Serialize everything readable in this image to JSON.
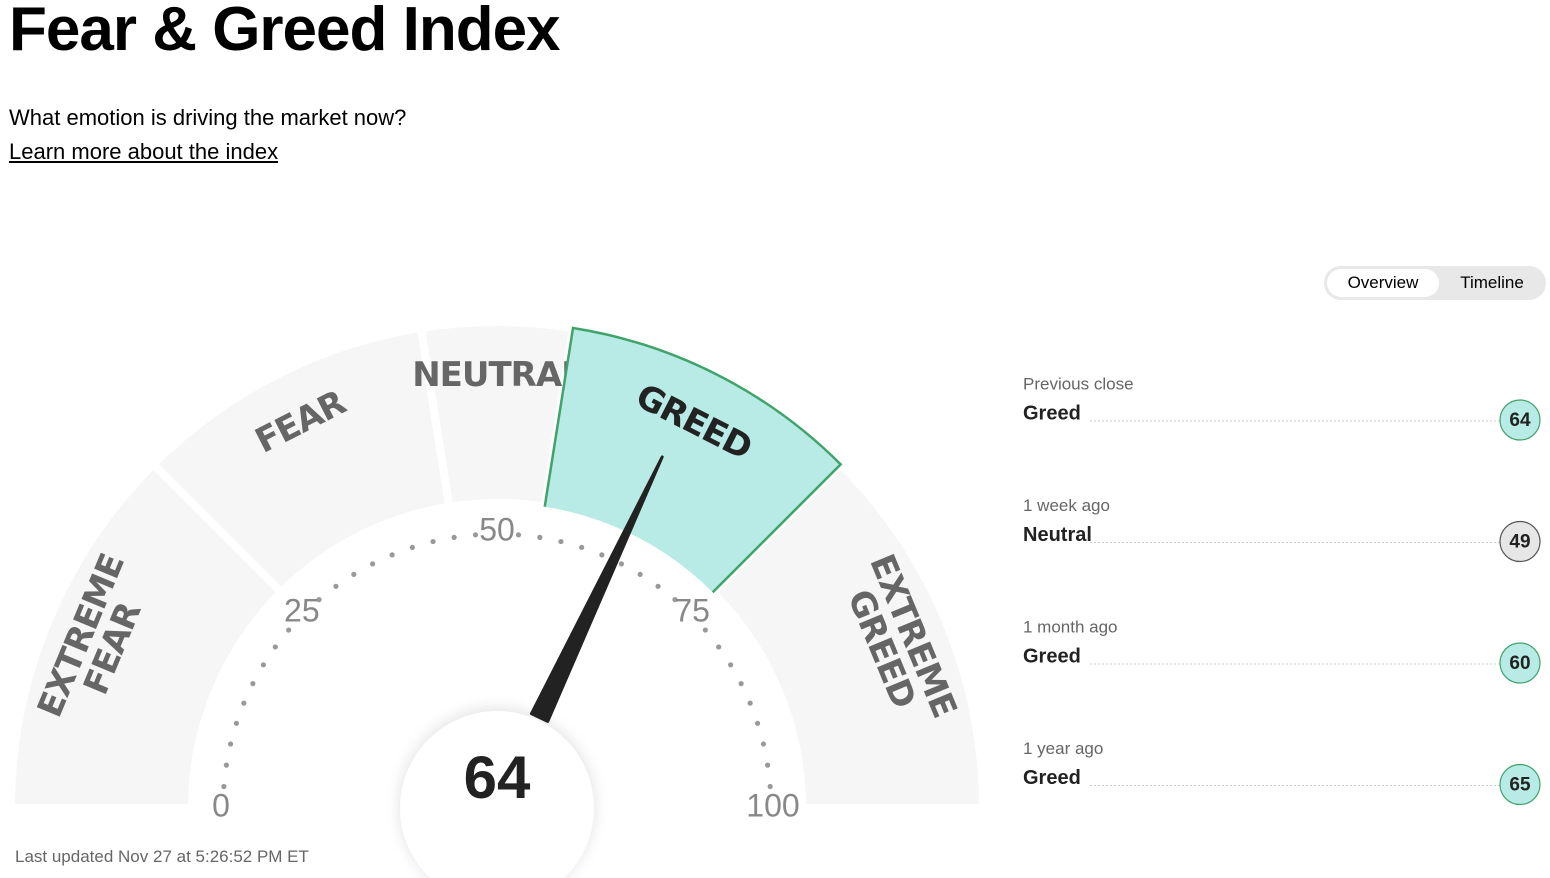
{
  "header": {
    "title": "Fear & Greed Index",
    "subtitle": "What emotion is driving the market now?",
    "link": "Learn more about the index"
  },
  "tabs": [
    "Overview",
    "Timeline"
  ],
  "gauge": {
    "value": 64,
    "min": 0,
    "max": 100,
    "ticks": [
      0,
      25,
      50,
      75,
      100
    ],
    "segments": [
      {
        "label": [
          "EXTREME",
          "FEAR"
        ],
        "from": 0,
        "to": 25
      },
      {
        "label": [
          "FEAR"
        ],
        "from": 25,
        "to": 45
      },
      {
        "label": [
          "NEUTRAL"
        ],
        "from": 45,
        "to": 55
      },
      {
        "label": [
          "GREED"
        ],
        "from": 55,
        "to": 75
      },
      {
        "label": [
          "EXTREME",
          "GREED"
        ],
        "from": 75,
        "to": 100
      }
    ]
  },
  "history": [
    {
      "period": "Previous close",
      "rating": "Greed",
      "value": 64
    },
    {
      "period": "1 week ago",
      "rating": "Neutral",
      "value": 49
    },
    {
      "period": "1 month ago",
      "rating": "Greed",
      "value": 60
    },
    {
      "period": "1 year ago",
      "rating": "Greed",
      "value": 65
    }
  ],
  "updated": "Last updated Nov 27 at 5:26:52 PM ET"
}
